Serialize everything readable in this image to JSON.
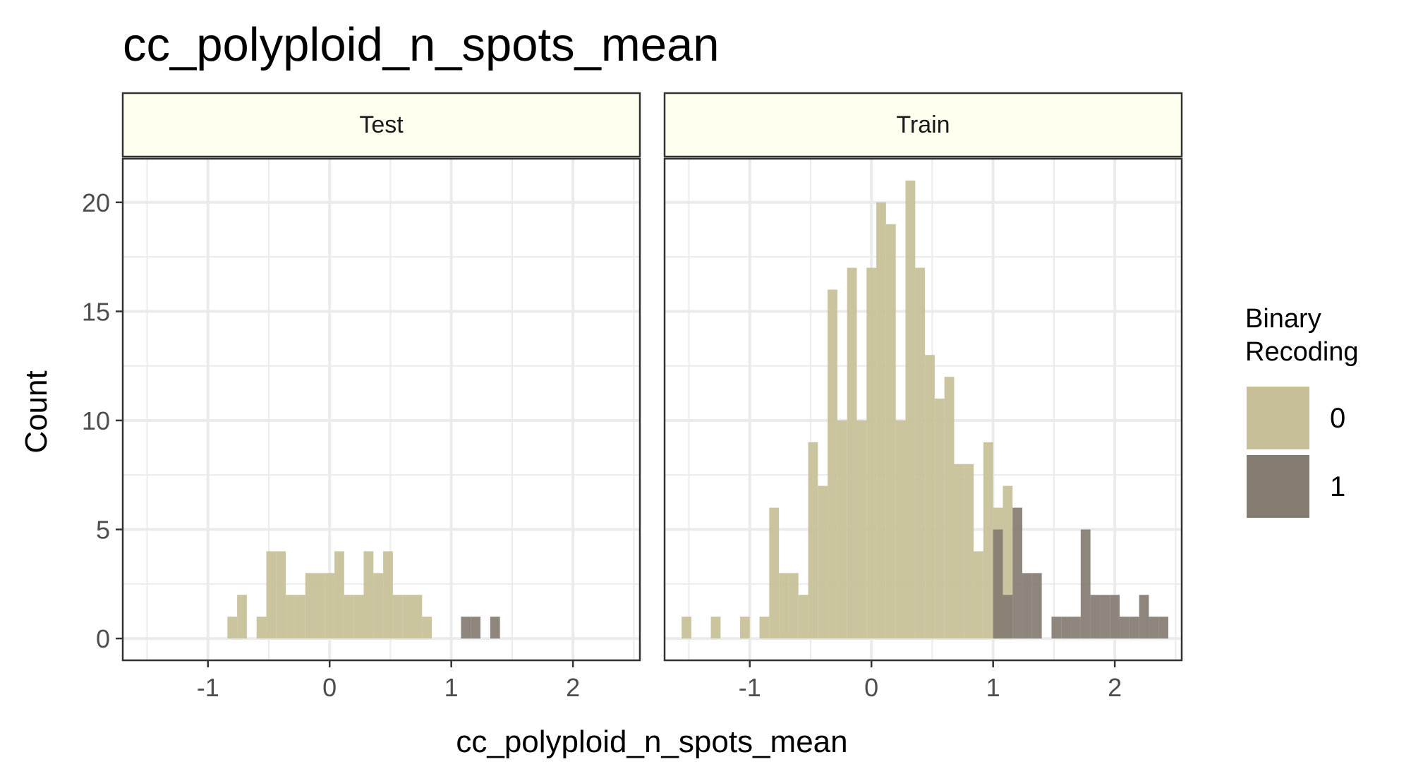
{
  "chart_data": {
    "type": "histogram",
    "title": "cc_polyploid_n_spots_mean",
    "xlabel": "cc_polyploid_n_spots_mean",
    "ylabel": "Count",
    "xlim": [
      -1.7,
      2.55
    ],
    "ylim": [
      -1,
      22
    ],
    "x_ticks": [
      -1,
      0,
      1,
      2
    ],
    "y_ticks": [
      0,
      5,
      10,
      15,
      20
    ],
    "bin_width": 0.08,
    "grid": true,
    "legend": {
      "title_lines": [
        "Binary",
        "Recoding"
      ],
      "placement": "right",
      "items": [
        {
          "label": "0",
          "color": "#c6bf97"
        },
        {
          "label": "1",
          "color": "#847b71"
        }
      ]
    },
    "panels": [
      {
        "label": "Test",
        "series": [
          {
            "name": "0",
            "color": "#c6bf97",
            "bins": [
              {
                "x0": -0.84,
                "count": 1
              },
              {
                "x0": -0.76,
                "count": 2
              },
              {
                "x0": -0.6,
                "count": 1
              },
              {
                "x0": -0.52,
                "count": 4
              },
              {
                "x0": -0.44,
                "count": 4
              },
              {
                "x0": -0.36,
                "count": 2
              },
              {
                "x0": -0.28,
                "count": 2
              },
              {
                "x0": -0.2,
                "count": 3
              },
              {
                "x0": -0.12,
                "count": 3
              },
              {
                "x0": -0.04,
                "count": 3
              },
              {
                "x0": 0.04,
                "count": 4
              },
              {
                "x0": 0.12,
                "count": 2
              },
              {
                "x0": 0.2,
                "count": 2
              },
              {
                "x0": 0.28,
                "count": 4
              },
              {
                "x0": 0.36,
                "count": 3
              },
              {
                "x0": 0.44,
                "count": 4
              },
              {
                "x0": 0.52,
                "count": 2
              },
              {
                "x0": 0.6,
                "count": 2
              },
              {
                "x0": 0.68,
                "count": 2
              },
              {
                "x0": 0.76,
                "count": 1
              }
            ]
          },
          {
            "name": "1",
            "color": "#847b71",
            "bins": [
              {
                "x0": 1.08,
                "count": 1
              },
              {
                "x0": 1.16,
                "count": 1
              },
              {
                "x0": 1.32,
                "count": 1
              }
            ]
          }
        ]
      },
      {
        "label": "Train",
        "series": [
          {
            "name": "0",
            "color": "#c6bf97",
            "bins": [
              {
                "x0": -1.56,
                "count": 1
              },
              {
                "x0": -1.32,
                "count": 1
              },
              {
                "x0": -1.08,
                "count": 1
              },
              {
                "x0": -0.92,
                "count": 1
              },
              {
                "x0": -0.84,
                "count": 6
              },
              {
                "x0": -0.76,
                "count": 3
              },
              {
                "x0": -0.68,
                "count": 3
              },
              {
                "x0": -0.6,
                "count": 2
              },
              {
                "x0": -0.52,
                "count": 9
              },
              {
                "x0": -0.44,
                "count": 7
              },
              {
                "x0": -0.36,
                "count": 16
              },
              {
                "x0": -0.28,
                "count": 10
              },
              {
                "x0": -0.2,
                "count": 17
              },
              {
                "x0": -0.12,
                "count": 10
              },
              {
                "x0": -0.04,
                "count": 17
              },
              {
                "x0": 0.04,
                "count": 20
              },
              {
                "x0": 0.12,
                "count": 19
              },
              {
                "x0": 0.2,
                "count": 10
              },
              {
                "x0": 0.28,
                "count": 21
              },
              {
                "x0": 0.36,
                "count": 17
              },
              {
                "x0": 0.44,
                "count": 13
              },
              {
                "x0": 0.52,
                "count": 11
              },
              {
                "x0": 0.6,
                "count": 12
              },
              {
                "x0": 0.68,
                "count": 8
              },
              {
                "x0": 0.76,
                "count": 8
              },
              {
                "x0": 0.84,
                "count": 4
              },
              {
                "x0": 0.92,
                "count": 9
              },
              {
                "x0": 1.0,
                "count": 6
              },
              {
                "x0": 1.08,
                "count": 7
              }
            ]
          },
          {
            "name": "1",
            "color": "#847b71",
            "bins": [
              {
                "x0": 1.0,
                "count": 5
              },
              {
                "x0": 1.08,
                "count": 2
              },
              {
                "x0": 1.16,
                "count": 6
              },
              {
                "x0": 1.24,
                "count": 3
              },
              {
                "x0": 1.32,
                "count": 3
              },
              {
                "x0": 1.48,
                "count": 1
              },
              {
                "x0": 1.56,
                "count": 1
              },
              {
                "x0": 1.64,
                "count": 1
              },
              {
                "x0": 1.72,
                "count": 5
              },
              {
                "x0": 1.8,
                "count": 2
              },
              {
                "x0": 1.88,
                "count": 2
              },
              {
                "x0": 1.96,
                "count": 2
              },
              {
                "x0": 2.04,
                "count": 1
              },
              {
                "x0": 2.12,
                "count": 1
              },
              {
                "x0": 2.2,
                "count": 2
              },
              {
                "x0": 2.28,
                "count": 1
              },
              {
                "x0": 2.36,
                "count": 1
              }
            ]
          }
        ]
      }
    ]
  }
}
